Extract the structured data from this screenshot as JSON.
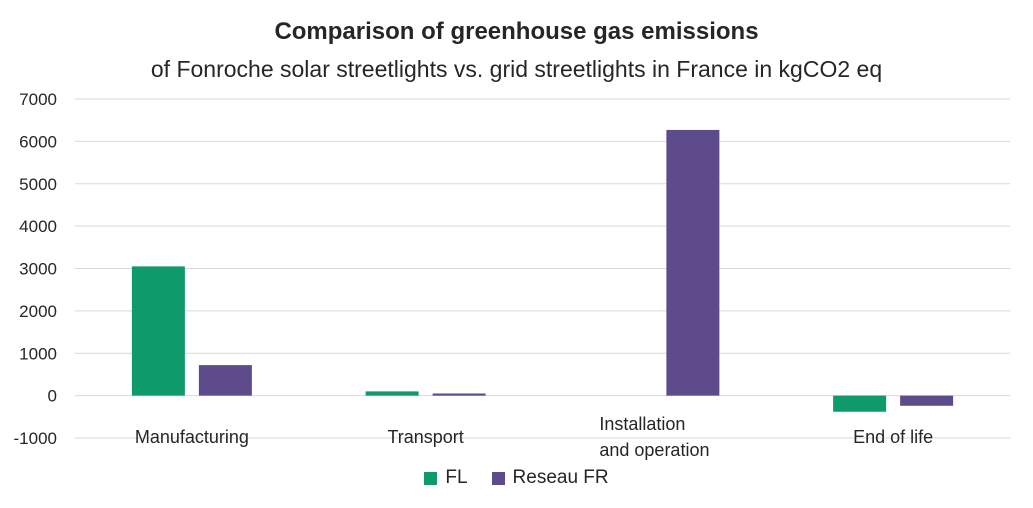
{
  "chart_data": {
    "type": "bar",
    "title": "Comparison of greenhouse gas emissions",
    "subtitle": "of Fonroche solar streetlights vs. grid streetlights in France in kgCO2 eq",
    "categories": [
      [
        "Manufacturing"
      ],
      [
        "Transport"
      ],
      [
        "Installation",
        "and operation"
      ],
      [
        "End of life"
      ]
    ],
    "series": [
      {
        "name": "FL",
        "values": [
          3050,
          100,
          0,
          -380
        ],
        "color": "#0e9a6a"
      },
      {
        "name": "Reseau FR",
        "values": [
          720,
          50,
          6270,
          -240
        ],
        "color": "#5e4b8b"
      }
    ],
    "ylim": [
      -1000,
      7000
    ],
    "yticks": [
      "7000",
      "6000",
      "5000",
      "4000",
      "3000",
      "2000",
      "1000",
      "0",
      "-1000"
    ],
    "ytick_values": [
      7000,
      6000,
      5000,
      4000,
      3000,
      2000,
      1000,
      0,
      -1000
    ],
    "grid": true,
    "legend_position": "bottom"
  }
}
